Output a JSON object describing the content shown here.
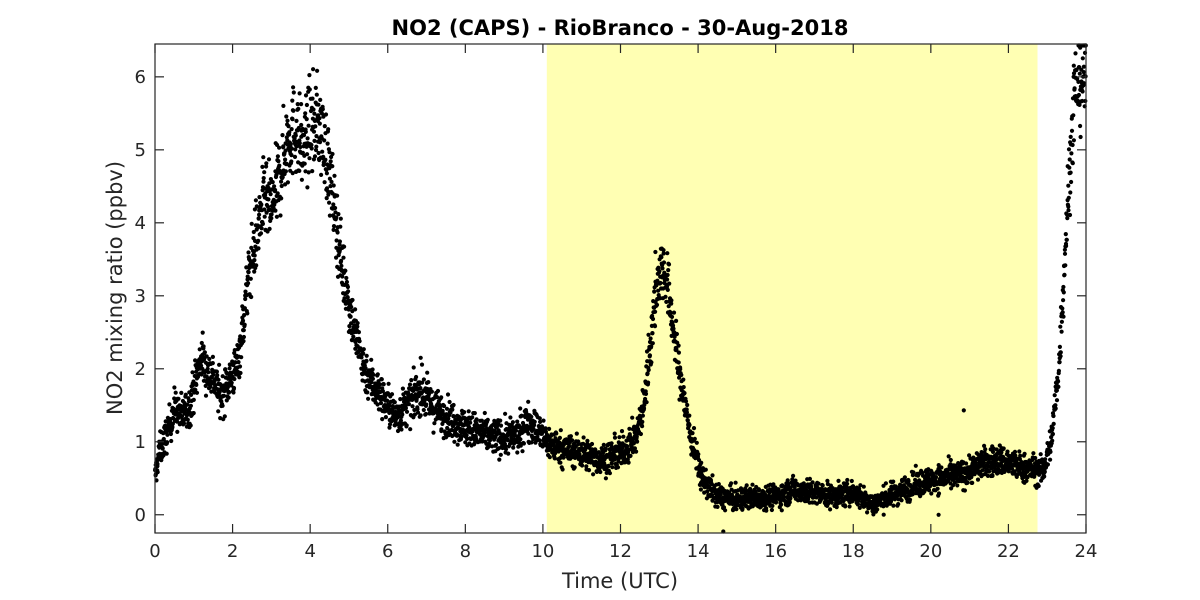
{
  "chart_data": {
    "type": "scatter",
    "title": "NO2 (CAPS) - RioBranco - 30-Aug-2018",
    "xlabel": "Time (UTC)",
    "ylabel": "NO2 mixing ratio (ppbv)",
    "xlim": [
      0,
      24
    ],
    "ylim": [
      -0.25,
      6.45
    ],
    "xticks": [
      "0",
      "2",
      "4",
      "6",
      "8",
      "10",
      "12",
      "14",
      "16",
      "18",
      "20",
      "22",
      "24"
    ],
    "yticks": [
      "0",
      "1",
      "2",
      "3",
      "4",
      "5",
      "6"
    ],
    "grid": false,
    "legend": "none",
    "marker_color": "#000000",
    "shaded_period": {
      "x_start": 10.1,
      "x_end": 22.75,
      "color": "#ffffb3"
    },
    "trend": [
      [
        0.0,
        0.5
      ],
      [
        0.1,
        0.85
      ],
      [
        0.3,
        1.1
      ],
      [
        0.5,
        1.45
      ],
      [
        0.7,
        1.35
      ],
      [
        0.9,
        1.5
      ],
      [
        1.1,
        1.95
      ],
      [
        1.2,
        2.2
      ],
      [
        1.3,
        2.0
      ],
      [
        1.5,
        1.9
      ],
      [
        1.7,
        1.6
      ],
      [
        1.9,
        1.85
      ],
      [
        2.1,
        2.0
      ],
      [
        2.2,
        2.3
      ],
      [
        2.4,
        3.2
      ],
      [
        2.6,
        3.8
      ],
      [
        2.8,
        4.3
      ],
      [
        3.0,
        4.2
      ],
      [
        3.2,
        4.6
      ],
      [
        3.4,
        5.1
      ],
      [
        3.6,
        5.3
      ],
      [
        3.8,
        5.0
      ],
      [
        4.0,
        5.3
      ],
      [
        4.2,
        5.4
      ],
      [
        4.4,
        5.0
      ],
      [
        4.6,
        4.3
      ],
      [
        4.8,
        3.5
      ],
      [
        5.0,
        2.9
      ],
      [
        5.2,
        2.4
      ],
      [
        5.4,
        2.0
      ],
      [
        5.6,
        1.8
      ],
      [
        5.8,
        1.65
      ],
      [
        6.0,
        1.5
      ],
      [
        6.2,
        1.35
      ],
      [
        6.4,
        1.45
      ],
      [
        6.6,
        1.55
      ],
      [
        6.8,
        1.7
      ],
      [
        7.0,
        1.6
      ],
      [
        7.2,
        1.45
      ],
      [
        7.5,
        1.35
      ],
      [
        8.0,
        1.2
      ],
      [
        8.5,
        1.1
      ],
      [
        9.0,
        1.05
      ],
      [
        9.4,
        1.1
      ],
      [
        9.6,
        1.3
      ],
      [
        9.8,
        1.2
      ],
      [
        10.1,
        1.0
      ],
      [
        10.5,
        0.9
      ],
      [
        11.0,
        0.85
      ],
      [
        11.5,
        0.75
      ],
      [
        12.0,
        0.85
      ],
      [
        12.4,
        1.05
      ],
      [
        12.6,
        1.5
      ],
      [
        12.8,
        2.5
      ],
      [
        12.95,
        3.2
      ],
      [
        13.1,
        3.4
      ],
      [
        13.25,
        3.0
      ],
      [
        13.5,
        2.0
      ],
      [
        13.8,
        1.1
      ],
      [
        14.1,
        0.5
      ],
      [
        14.5,
        0.25
      ],
      [
        15.0,
        0.2
      ],
      [
        15.5,
        0.25
      ],
      [
        16.0,
        0.25
      ],
      [
        16.5,
        0.35
      ],
      [
        17.0,
        0.3
      ],
      [
        17.5,
        0.25
      ],
      [
        18.0,
        0.3
      ],
      [
        18.5,
        0.15
      ],
      [
        18.9,
        0.25
      ],
      [
        19.3,
        0.35
      ],
      [
        19.8,
        0.45
      ],
      [
        20.3,
        0.5
      ],
      [
        20.8,
        0.55
      ],
      [
        21.3,
        0.7
      ],
      [
        21.8,
        0.75
      ],
      [
        22.3,
        0.65
      ],
      [
        22.9,
        0.6
      ],
      [
        23.1,
        1.0
      ],
      [
        23.3,
        2.0
      ],
      [
        23.5,
        4.0
      ],
      [
        23.7,
        5.8
      ],
      [
        24.0,
        6.05
      ]
    ],
    "outliers": [
      [
        20.85,
        1.43
      ],
      [
        14.65,
        -0.23
      ],
      [
        23.85,
        6.4
      ],
      [
        6.85,
        2.15
      ],
      [
        12.9,
        3.6
      ],
      [
        20.2,
        0.0
      ]
    ]
  }
}
